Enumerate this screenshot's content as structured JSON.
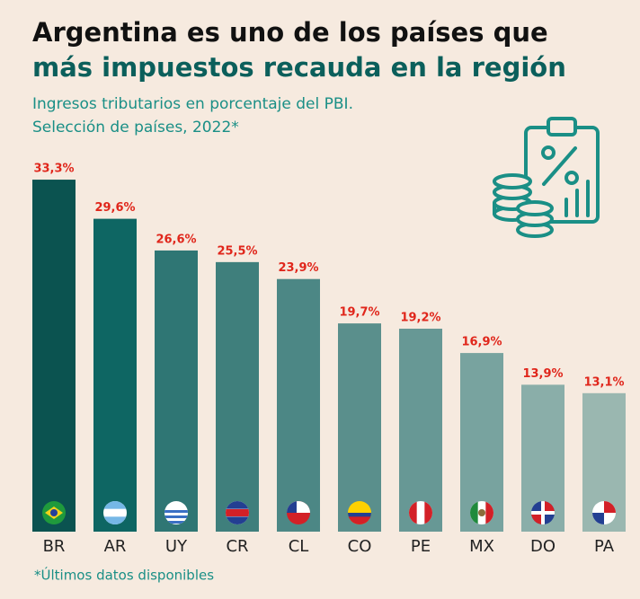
{
  "chart_data": {
    "type": "bar",
    "title": [
      "Argentina es uno de los países que",
      "más impuestos recauda en la región"
    ],
    "subtitle": [
      "Ingresos tributarios en porcentaje del PBI.",
      "Selección de países, 2022*"
    ],
    "footnote": "*Últimos datos disponibles",
    "categories": [
      "BR",
      "AR",
      "UY",
      "CR",
      "CL",
      "CO",
      "PE",
      "MX",
      "DO",
      "PA"
    ],
    "values": [
      33.3,
      29.6,
      26.6,
      25.5,
      23.9,
      19.7,
      19.2,
      16.9,
      13.9,
      13.1
    ],
    "value_labels": [
      "33,3%",
      "29,6%",
      "26,6%",
      "25,5%",
      "23,9%",
      "19,7%",
      "19,2%",
      "16,9%",
      "13,9%",
      "13,1%"
    ],
    "colors": [
      "#0b5350",
      "#0e6663",
      "#2f7674",
      "#3f7f7c",
      "#4c8785",
      "#5a8f8c",
      "#679895",
      "#78a39f",
      "#8aaea9",
      "#9ab7b0"
    ],
    "label_color": "#e0261b"
  }
}
